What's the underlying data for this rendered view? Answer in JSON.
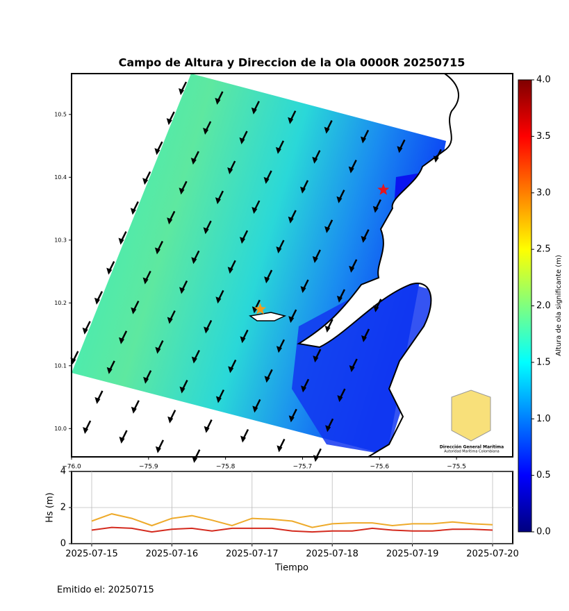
{
  "chart_data": [
    {
      "type": "map",
      "title": "Campo de Altura y Direccion de la Ola 0000R 20250715",
      "xlim": [
        -76.0,
        -75.427
      ],
      "ylim": [
        9.955,
        10.565
      ],
      "xticks": [
        {
          "value": -76.0,
          "label": "−76.0"
        },
        {
          "value": -75.9,
          "label": "−75.9"
        },
        {
          "value": -75.8,
          "label": "−75.8"
        },
        {
          "value": -75.7,
          "label": "−75.7"
        },
        {
          "value": -75.6,
          "label": "−75.6"
        },
        {
          "value": -75.5,
          "label": "−75.5"
        }
      ],
      "yticks": [
        {
          "value": 10.0,
          "label": "10.0"
        },
        {
          "value": 10.1,
          "label": "10.1"
        },
        {
          "value": 10.2,
          "label": "10.2"
        },
        {
          "value": 10.3,
          "label": "10.3"
        },
        {
          "value": 10.4,
          "label": "10.4"
        },
        {
          "value": 10.5,
          "label": "10.5"
        }
      ],
      "points": [
        {
          "x": -75.595,
          "y": 10.38,
          "color": "#e8141c"
        },
        {
          "x": -75.755,
          "y": 10.19,
          "color": "#f39c1e"
        }
      ],
      "colorbar": {
        "label": "Altura de ola significante (m)",
        "lim": [
          0,
          4
        ],
        "ticks": [
          {
            "value": 0,
            "label": "0.0"
          },
          {
            "value": 0.5,
            "label": "0.5"
          },
          {
            "value": 1,
            "label": "1.0"
          },
          {
            "value": 1.5,
            "label": "1.5"
          },
          {
            "value": 2,
            "label": "2.0"
          },
          {
            "value": 2.5,
            "label": "2.5"
          },
          {
            "value": 3,
            "label": "3.0"
          },
          {
            "value": 3.5,
            "label": "3.5"
          },
          {
            "value": 4,
            "label": "4.0"
          }
        ],
        "colors": [
          "#00007f",
          "#0000ff",
          "#007fff",
          "#00ffff",
          "#7fff7f",
          "#ffff00",
          "#ff7f00",
          "#ff0000",
          "#7f0000"
        ]
      },
      "logo": {
        "name": "Dirección General Marítima",
        "subtitle": "Autoridad Marítima Colombiana"
      }
    },
    {
      "type": "line",
      "xlabel": "Tiempo",
      "ylabel": "Hs (m)",
      "xlim": [
        "2025-07-15",
        "2025-07-20"
      ],
      "xticks": [
        "2025-07-15",
        "2025-07-16",
        "2025-07-17",
        "2025-07-18",
        "2025-07-19",
        "2025-07-20"
      ],
      "ylim": [
        0,
        4
      ],
      "yticks": [
        0,
        2,
        4
      ],
      "grid": true,
      "series": [
        {
          "color": "#eeaa2a",
          "values": [
            1.25,
            1.65,
            1.4,
            1.0,
            1.4,
            1.55,
            1.3,
            1.0,
            1.4,
            1.35,
            1.25,
            0.9,
            1.1,
            1.15,
            1.15,
            1.0,
            1.1,
            1.1,
            1.2,
            1.1,
            1.05
          ]
        },
        {
          "color": "#d42a1e",
          "values": [
            0.75,
            0.9,
            0.85,
            0.65,
            0.8,
            0.85,
            0.7,
            0.85,
            0.85,
            0.85,
            0.7,
            0.65,
            0.7,
            0.7,
            0.85,
            0.75,
            0.7,
            0.7,
            0.8,
            0.8,
            0.75
          ]
        }
      ]
    },
    {
      "footer": "Emitido el: 20250715"
    }
  ]
}
